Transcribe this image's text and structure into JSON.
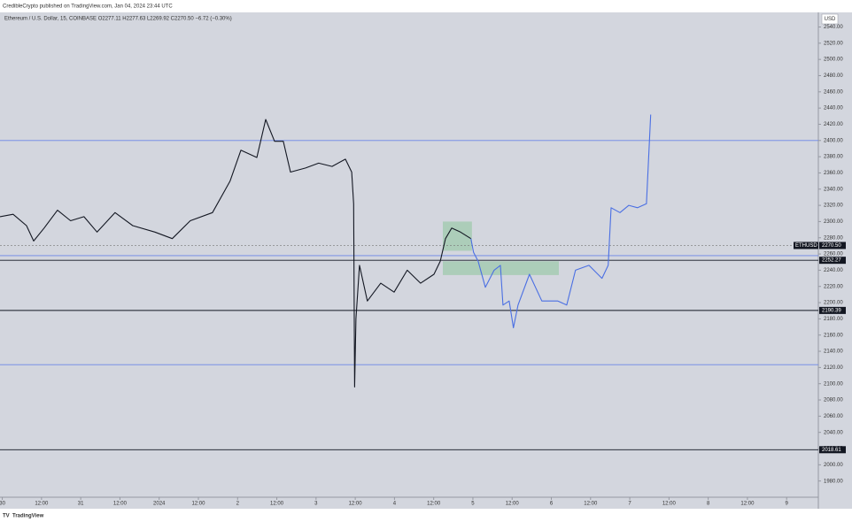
{
  "header": {
    "credit": "CredibleCrypto published on TradingView.com, Jan 04, 2024 23:44 UTC"
  },
  "footer": {
    "brand": "TradingView"
  },
  "chart_data": {
    "type": "line",
    "legend_text": "Ethereum / U.S. Dollar, 15, COINBASE  O2277.11  H2277.63  L2269.92  C2270.50  −6.72 (−0.30%)",
    "currency": "USD",
    "xlim": [
      -12.7,
      237.7
    ],
    "ylim": [
      1960,
      2558
    ],
    "xticks": [
      {
        "value": -12,
        "label": "30"
      },
      {
        "value": 0,
        "label": "12:00"
      },
      {
        "value": 12,
        "label": "31"
      },
      {
        "value": 24,
        "label": "12:00"
      },
      {
        "value": 36,
        "label": "2024"
      },
      {
        "value": 48,
        "label": "12:00"
      },
      {
        "value": 60,
        "label": "2"
      },
      {
        "value": 72,
        "label": "12:00"
      },
      {
        "value": 84,
        "label": "3"
      },
      {
        "value": 96,
        "label": "12:00"
      },
      {
        "value": 108,
        "label": "4"
      },
      {
        "value": 120,
        "label": "12:00"
      },
      {
        "value": 132,
        "label": "5"
      },
      {
        "value": 144,
        "label": "12:00"
      },
      {
        "value": 156,
        "label": "6"
      },
      {
        "value": 168,
        "label": "12:00"
      },
      {
        "value": 180,
        "label": "7"
      },
      {
        "value": 192,
        "label": "12:00"
      },
      {
        "value": 204,
        "label": "8"
      },
      {
        "value": 216,
        "label": "12:00"
      },
      {
        "value": 228,
        "label": "9"
      }
    ],
    "yticks": [
      {
        "value": 1980,
        "label": "1980.00"
      },
      {
        "value": 2000,
        "label": "2000.00"
      },
      {
        "value": 2020,
        "label": "2020.00"
      },
      {
        "value": 2040,
        "label": "2040.00"
      },
      {
        "value": 2060,
        "label": "2060.00"
      },
      {
        "value": 2080,
        "label": "2080.00"
      },
      {
        "value": 2100,
        "label": "2100.00"
      },
      {
        "value": 2120,
        "label": "2120.00"
      },
      {
        "value": 2140,
        "label": "2140.00"
      },
      {
        "value": 2160,
        "label": "2160.00"
      },
      {
        "value": 2180,
        "label": "2180.00"
      },
      {
        "value": 2200,
        "label": "2200.00"
      },
      {
        "value": 2220,
        "label": "2220.00"
      },
      {
        "value": 2240,
        "label": "2240.00"
      },
      {
        "value": 2260,
        "label": "2260.00"
      },
      {
        "value": 2280,
        "label": "2280.00"
      },
      {
        "value": 2300,
        "label": "2300.00"
      },
      {
        "value": 2320,
        "label": "2320.00"
      },
      {
        "value": 2340,
        "label": "2340.00"
      },
      {
        "value": 2360,
        "label": "2360.00"
      },
      {
        "value": 2380,
        "label": "2380.00"
      },
      {
        "value": 2400,
        "label": "2400.00"
      },
      {
        "value": 2420,
        "label": "2420.00"
      },
      {
        "value": 2440,
        "label": "2440.00"
      },
      {
        "value": 2460,
        "label": "2460.00"
      },
      {
        "value": 2480,
        "label": "2480.00"
      },
      {
        "value": 2500,
        "label": "2500.00"
      },
      {
        "value": 2520,
        "label": "2520.00"
      },
      {
        "value": 2540,
        "label": "2540.00"
      }
    ],
    "series": [
      {
        "color": "#131722",
        "x": [
          -12.7,
          -8.7,
          -4.6,
          -2.4,
          0.8,
          4.9,
          8.9,
          13,
          17,
          22.5,
          27.9,
          34.7,
          40,
          45.5,
          52.3,
          57.7,
          61,
          65.9,
          68.6,
          71.3,
          74,
          76.2,
          80.8,
          84.8,
          88.9,
          93,
          94.9,
          95.5,
          95.8,
          96.2,
          97.3,
          99.7,
          103.8,
          107.9,
          111.9,
          116,
          120.1,
          122,
          123.6,
          125.5,
          128.2,
          131.4
        ],
        "values": [
          2306,
          2309,
          2295,
          2276,
          2292,
          2314,
          2301,
          2306,
          2287,
          2311,
          2295,
          2287,
          2279,
          2301,
          2311,
          2350,
          2388,
          2379,
          2426,
          2399,
          2399,
          2361,
          2366,
          2372,
          2368,
          2377,
          2361,
          2322,
          2096,
          2180,
          2246,
          2202,
          2224,
          2213,
          2240,
          2224,
          2235,
          2251,
          2279,
          2292,
          2287,
          2279
        ]
      },
      {
        "color": "#4a6fe3",
        "x": [
          131.4,
          132.2,
          133.6,
          135.8,
          138.5,
          140.4,
          141.2,
          143.1,
          144.4,
          145.8,
          149.3,
          153.1,
          158,
          160.7,
          163.4,
          167.5,
          171.5,
          173.4,
          174.3,
          177,
          179.7,
          182.4,
          185.1,
          186.4
        ],
        "values": [
          2279,
          2262,
          2251,
          2219,
          2240,
          2246,
          2197,
          2202,
          2169,
          2197,
          2235,
          2202,
          2202,
          2197,
          2240,
          2246,
          2230,
          2246,
          2317,
          2311,
          2320,
          2317,
          2322,
          2432
        ]
      }
    ],
    "levels": [
      {
        "value": 2400,
        "color": "#6b86e8"
      },
      {
        "value": 2258,
        "color": "#6b86e8"
      },
      {
        "value": 2123.5,
        "color": "#6b86e8"
      }
    ],
    "key_levels": [
      {
        "value": 2252.27,
        "color": "#131722"
      },
      {
        "value": 2190.39,
        "color": "#131722"
      },
      {
        "value": 2018.61,
        "color": "#131722"
      }
    ],
    "last_price": {
      "name": "ETHUSD",
      "value": 2270.5,
      "label": "2270.50"
    },
    "zones": [
      {
        "x": [
          122.8,
          131.7
        ],
        "y": [
          2264,
          2300
        ],
        "color": "#8cc79a"
      },
      {
        "x": [
          122.8,
          158.3
        ],
        "y": [
          2234,
          2251
        ],
        "color": "#8cc79a"
      }
    ]
  }
}
